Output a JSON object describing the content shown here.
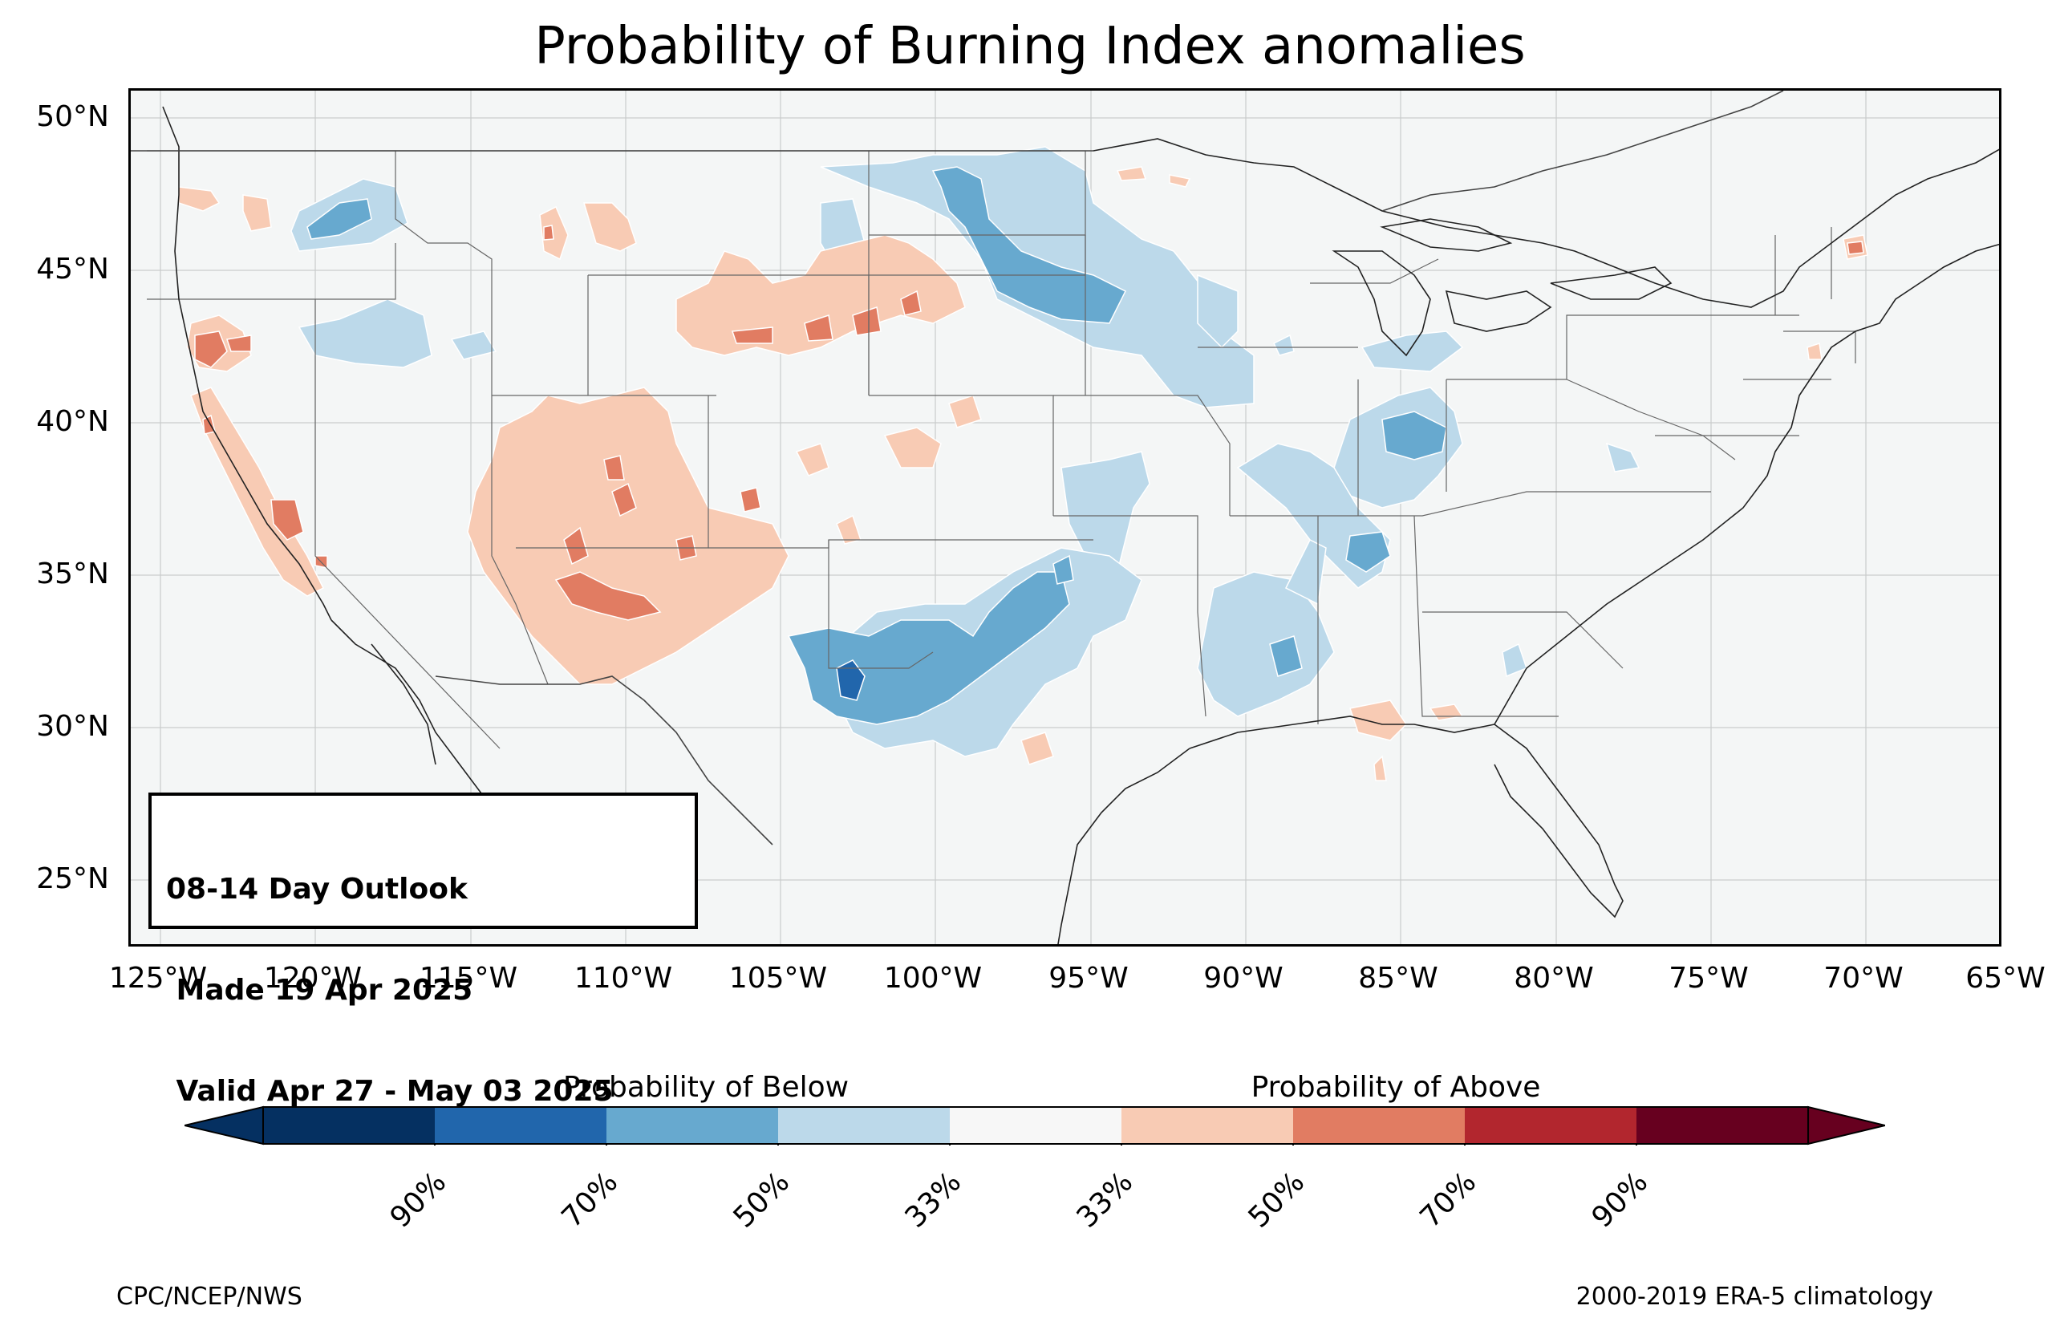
{
  "title": "Probability of Burning Index anomalies",
  "info_box": {
    "line1": "08-14 Day Outlook",
    "line2": " Made 19 Apr 2025",
    "line3": " Valid Apr 27 - May 03 2025"
  },
  "latitude_ticks": [
    "50°N",
    "45°N",
    "40°N",
    "35°N",
    "30°N",
    "25°N"
  ],
  "longitude_ticks": [
    "125°W",
    "120°W",
    "115°W",
    "110°W",
    "105°W",
    "100°W",
    "95°W",
    "90°W",
    "85°W",
    "80°W",
    "75°W",
    "70°W",
    "65°W"
  ],
  "colorbar": {
    "below_label": "Probability of Below",
    "above_label": "Probability of Above",
    "tick_labels": [
      "90%",
      "70%",
      "50%",
      "33%",
      "33%",
      "50%",
      "70%",
      "90%"
    ],
    "below_colors": [
      "#053061",
      "#2166ac",
      "#67a9cf",
      "#bcd9ea"
    ],
    "neutral_color": "#f7f7f7",
    "above_colors": [
      "#f8cbb4",
      "#e17c62",
      "#b2262e",
      "#67001f"
    ]
  },
  "footer": {
    "left": "CPC/NCEP/NWS",
    "right": "2000-2019 ERA-5 climatology"
  }
}
